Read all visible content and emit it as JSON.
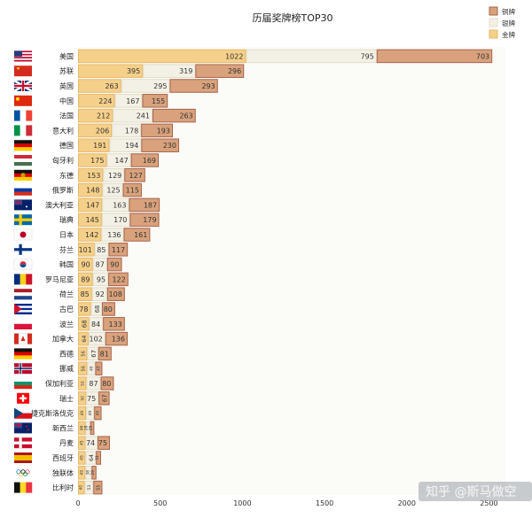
{
  "chart_data": {
    "type": "bar",
    "orientation": "horizontal",
    "stacked": true,
    "title": "历届奖牌榜TOP30",
    "categories": [
      "美国",
      "苏联",
      "英国",
      "中国",
      "法国",
      "意大利",
      "德国",
      "匈牙利",
      "东德",
      "俄罗斯",
      "澳大利亚",
      "瑞典",
      "日本",
      "芬兰",
      "韩国",
      "罗马尼亚",
      "荷兰",
      "古巴",
      "波兰",
      "加拿大",
      "西德",
      "挪威",
      "保加利亚",
      "瑞士",
      "捷克斯洛伐克",
      "新西兰",
      "丹麦",
      "西班牙",
      "独联体",
      "比利时"
    ],
    "series": [
      {
        "name": "金牌",
        "color": "#f5d08a",
        "values": [
          1022,
          395,
          263,
          224,
          212,
          206,
          191,
          175,
          153,
          148,
          147,
          145,
          142,
          101,
          90,
          89,
          85,
          78,
          68,
          64,
          56,
          56,
          51,
          50,
          49,
          46,
          45,
          45,
          45,
          40
        ]
      },
      {
        "name": "银牌",
        "color": "#f3f1e6",
        "values": [
          795,
          319,
          295,
          167,
          241,
          178,
          194,
          147,
          129,
          125,
          163,
          170,
          136,
          85,
          87,
          95,
          92,
          68,
          84,
          102,
          67,
          49,
          87,
          75,
          49,
          28,
          74,
          64,
          38,
          53
        ]
      },
      {
        "name": "铜牌",
        "color": "#d9a27c",
        "values": [
          703,
          296,
          293,
          155,
          263,
          193,
          230,
          169,
          127,
          115,
          187,
          179,
          161,
          117,
          90,
          122,
          108,
          80,
          133,
          136,
          81,
          43,
          80,
          67,
          45,
          25,
          75,
          31,
          29,
          55
        ]
      }
    ],
    "xlim": [
      0,
      2600
    ],
    "xticks": [
      0,
      500,
      1000,
      1500,
      2000,
      2500
    ],
    "legend": "top-right",
    "legend_order": [
      "铜牌",
      "银牌",
      "金牌"
    ]
  },
  "watermark": "知乎 @斯马做空"
}
